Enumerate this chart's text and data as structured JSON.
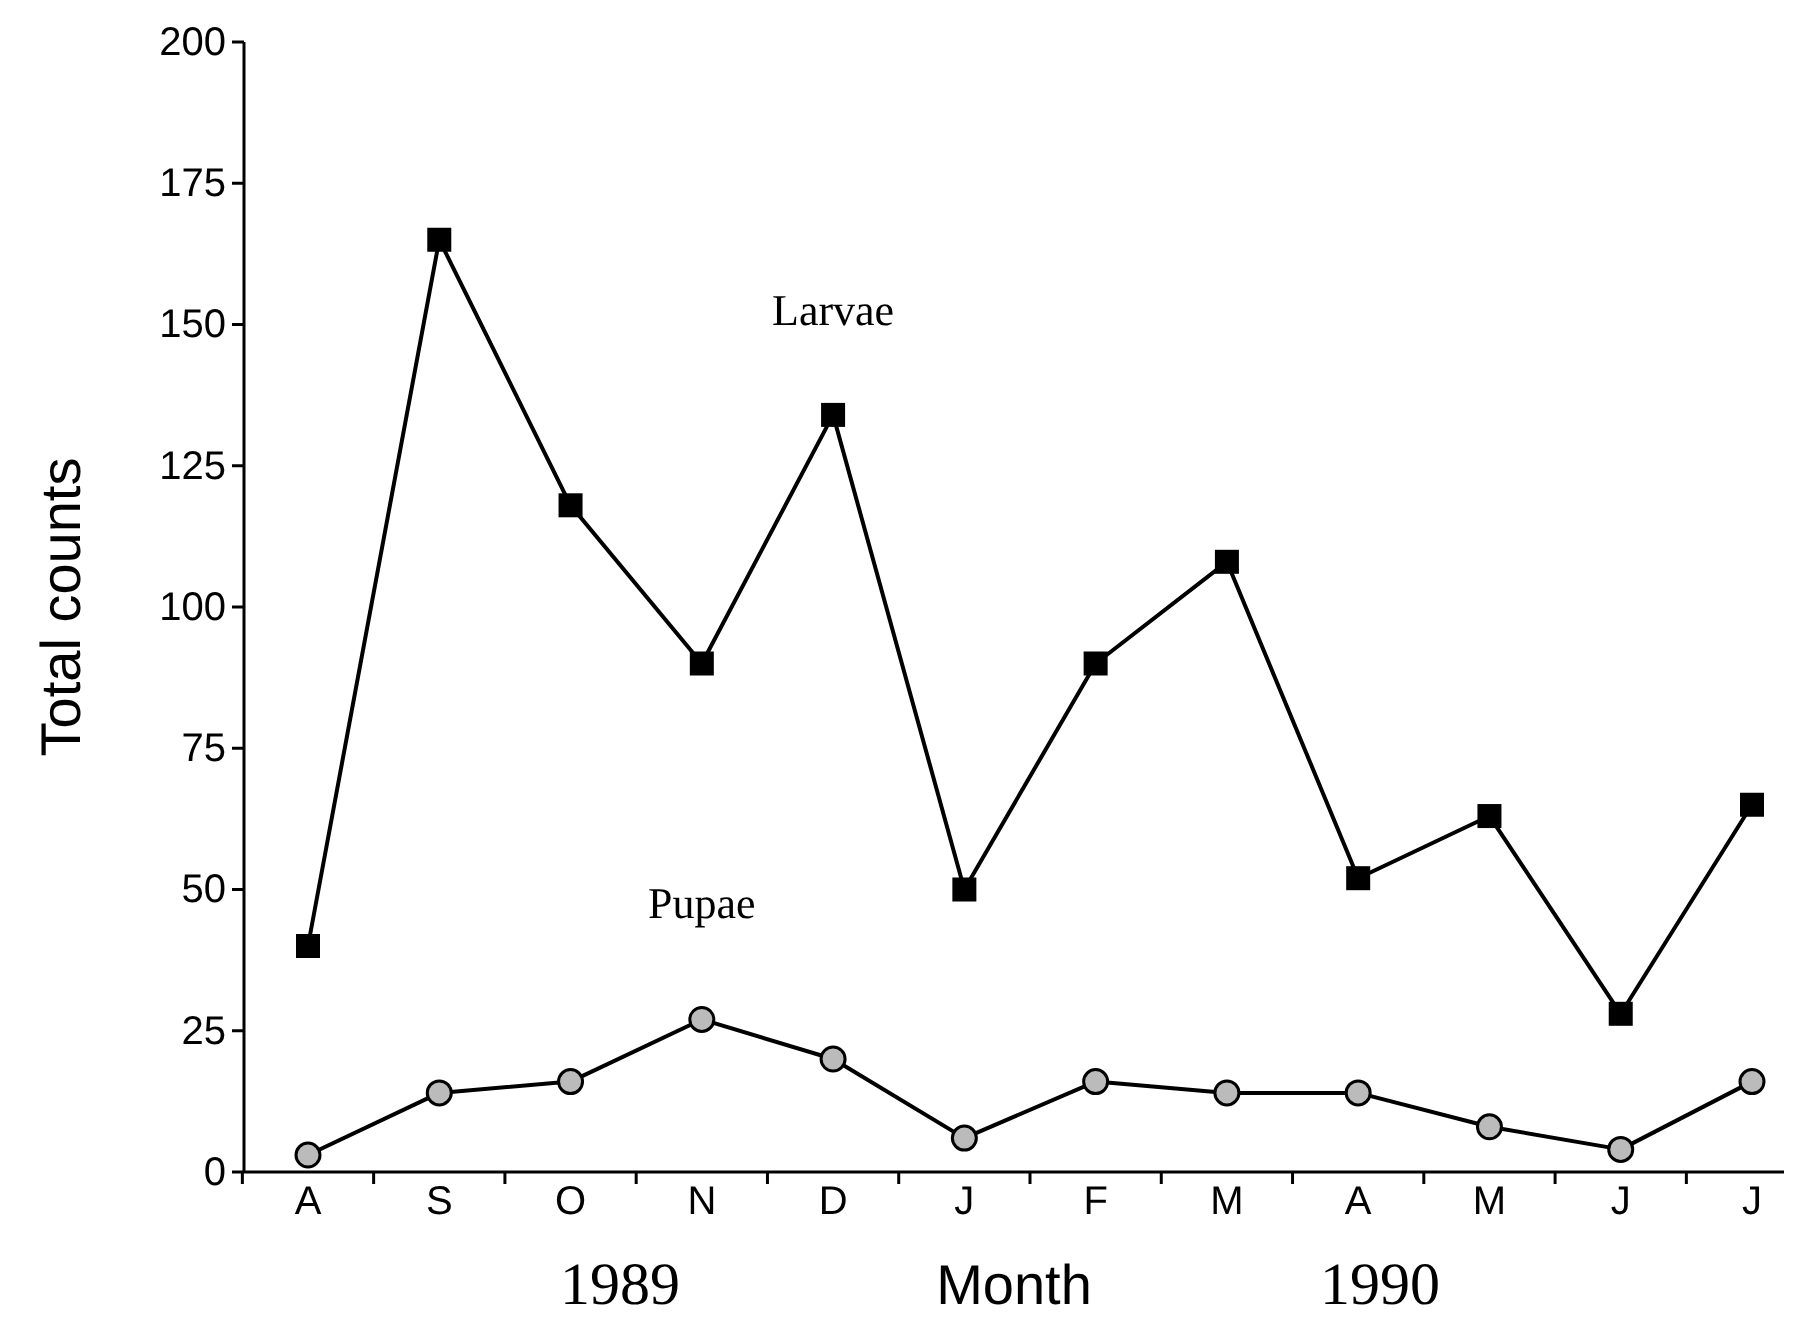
{
  "chart_data": {
    "type": "line",
    "xlabel": "Month",
    "ylabel": "Total counts",
    "categories": [
      "A",
      "S",
      "O",
      "N",
      "D",
      "J",
      "F",
      "M",
      "A",
      "M",
      "J",
      "J"
    ],
    "ylim": [
      0,
      200
    ],
    "yticks": [
      0,
      25,
      50,
      75,
      100,
      125,
      150,
      175,
      200
    ],
    "grid": false,
    "annotations": [
      "1989",
      "1990"
    ],
    "series": [
      {
        "name": "Larvae",
        "color": "#000000",
        "marker": "square",
        "values": [
          40,
          165,
          118,
          90,
          134,
          50,
          90,
          108,
          52,
          63,
          28,
          65
        ]
      },
      {
        "name": "Pupae",
        "color": "#000000",
        "marker": "circle",
        "values": [
          3,
          14,
          16,
          27,
          20,
          6,
          16,
          14,
          14,
          8,
          4,
          16
        ]
      }
    ]
  }
}
